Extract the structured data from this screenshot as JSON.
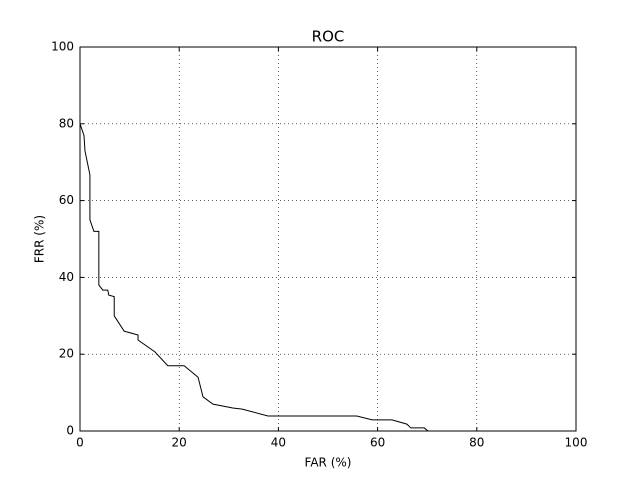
{
  "chart_data": {
    "type": "line",
    "title": "ROC",
    "xlabel": "FAR (%)",
    "ylabel": "FRR (%)",
    "x": [
      0,
      0.8,
      1,
      2,
      2,
      2.8,
      3.8,
      3.8,
      4.6,
      5.6,
      5.8,
      6.9,
      6.9,
      8.9,
      11.7,
      11.7,
      15.1,
      17.7,
      21,
      23.8,
      24.8,
      26.8,
      30.8,
      32.7,
      37.9,
      55.8,
      58.9,
      62.9,
      65.9,
      66.7,
      69.4,
      70.2,
      100
    ],
    "series": [
      {
        "color": "#000000",
        "values": [
          80,
          77,
          73,
          66.7,
          55,
          52,
          52,
          38,
          36.7,
          36.7,
          35.4,
          35,
          30,
          26,
          25,
          23.7,
          20.6,
          17,
          17,
          14,
          8.9,
          7,
          6,
          5.7,
          3.9,
          3.9,
          2.9,
          2.9,
          1.8,
          0.8,
          0.8,
          0,
          0
        ]
      }
    ],
    "xlim": [
      0,
      100
    ],
    "ylim": [
      0,
      100
    ],
    "xticks": [
      0,
      20,
      40,
      60,
      80,
      100
    ],
    "yticks": [
      0,
      20,
      40,
      60,
      80,
      100
    ],
    "grid": true
  }
}
